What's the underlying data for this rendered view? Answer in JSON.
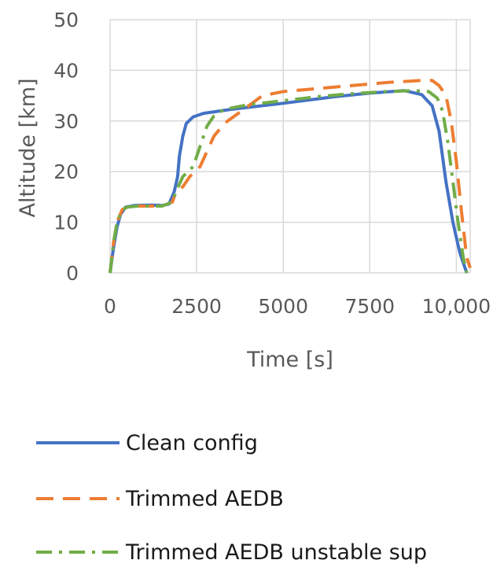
{
  "chart_data": {
    "type": "line",
    "title": "",
    "xlabel": "Time [s]",
    "ylabel": "Altitude [km]",
    "xlim": [
      0,
      10400
    ],
    "ylim": [
      0,
      50
    ],
    "x_ticks": [
      0,
      2500,
      5000,
      7500,
      10000
    ],
    "x_tick_labels": [
      "0",
      "2500",
      "5000",
      "7500",
      "10,000"
    ],
    "y_ticks": [
      0,
      10,
      20,
      30,
      40,
      50
    ],
    "y_tick_labels": [
      "0",
      "10",
      "20",
      "30",
      "40",
      "50"
    ],
    "grid": true,
    "legend_position": "bottom",
    "series": [
      {
        "name": "Clean config",
        "color": "#4472c4",
        "dash": "solid",
        "points": [
          [
            0,
            0
          ],
          [
            100,
            5
          ],
          [
            200,
            9
          ],
          [
            300,
            11.5
          ],
          [
            450,
            13
          ],
          [
            700,
            13.3
          ],
          [
            1200,
            13.4
          ],
          [
            1500,
            13.3
          ],
          [
            1700,
            13.6
          ],
          [
            1850,
            16
          ],
          [
            1950,
            19
          ],
          [
            2000,
            23
          ],
          [
            2100,
            27
          ],
          [
            2200,
            29.5
          ],
          [
            2400,
            30.8
          ],
          [
            2700,
            31.5
          ],
          [
            3500,
            32.3
          ],
          [
            5000,
            33.5
          ],
          [
            6500,
            34.8
          ],
          [
            7500,
            35.5
          ],
          [
            8500,
            36
          ],
          [
            9000,
            35.2
          ],
          [
            9300,
            33
          ],
          [
            9500,
            28
          ],
          [
            9700,
            18
          ],
          [
            9900,
            10
          ],
          [
            10100,
            4
          ],
          [
            10300,
            0
          ]
        ]
      },
      {
        "name": "Trimmed AEDB",
        "color": "#ed7d31",
        "dash": "dashed",
        "points": [
          [
            0,
            0
          ],
          [
            100,
            6
          ],
          [
            200,
            10
          ],
          [
            350,
            12.5
          ],
          [
            500,
            13
          ],
          [
            800,
            13.2
          ],
          [
            1500,
            13.2
          ],
          [
            1800,
            14
          ],
          [
            1900,
            16
          ],
          [
            2100,
            17
          ],
          [
            2300,
            19
          ],
          [
            2600,
            21
          ],
          [
            2800,
            24
          ],
          [
            3000,
            27
          ],
          [
            3300,
            29.5
          ],
          [
            3600,
            31
          ],
          [
            4000,
            33
          ],
          [
            4400,
            35
          ],
          [
            5000,
            35.8
          ],
          [
            6000,
            36.4
          ],
          [
            7000,
            37
          ],
          [
            8000,
            37.6
          ],
          [
            9000,
            38
          ],
          [
            9300,
            38
          ],
          [
            9500,
            37
          ],
          [
            9700,
            35
          ],
          [
            9850,
            30
          ],
          [
            10000,
            22
          ],
          [
            10150,
            12
          ],
          [
            10300,
            3
          ],
          [
            10400,
            1
          ]
        ]
      },
      {
        "name": "Trimmed AEDB unstable sup",
        "color": "#70ad47",
        "dash": "dashdot",
        "points": [
          [
            0,
            0
          ],
          [
            100,
            6
          ],
          [
            200,
            10
          ],
          [
            350,
            12.5
          ],
          [
            500,
            13
          ],
          [
            800,
            13.2
          ],
          [
            1500,
            13.2
          ],
          [
            1800,
            14
          ],
          [
            1900,
            16
          ],
          [
            2100,
            19
          ],
          [
            2400,
            21
          ],
          [
            2600,
            25
          ],
          [
            2800,
            29
          ],
          [
            3000,
            31
          ],
          [
            3300,
            32.3
          ],
          [
            4000,
            33.2
          ],
          [
            5000,
            34
          ],
          [
            6000,
            34.8
          ],
          [
            7000,
            35.4
          ],
          [
            8000,
            35.8
          ],
          [
            8800,
            36
          ],
          [
            9200,
            35.8
          ],
          [
            9450,
            34.5
          ],
          [
            9600,
            32
          ],
          [
            9750,
            26
          ],
          [
            9900,
            18
          ],
          [
            10050,
            10
          ],
          [
            10200,
            3
          ],
          [
            10300,
            0
          ]
        ]
      }
    ]
  }
}
